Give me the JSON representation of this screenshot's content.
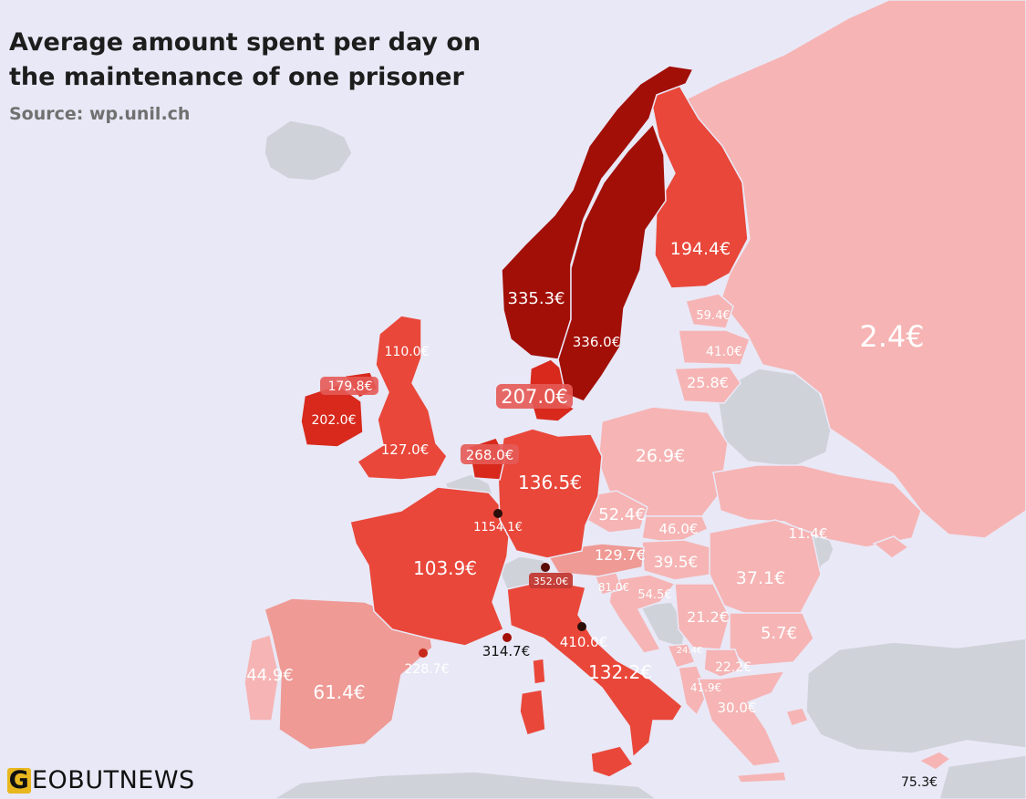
{
  "title": "Average amount spent per day on the maintenance of one prisoner",
  "source": "Source: wp.unil.ch",
  "brand": {
    "initial": "G",
    "rest": "EOBUTNEWS"
  },
  "colors": {
    "background": "#e9e8f6",
    "no_data": "#cfd2d9",
    "tier_1": "#f6b4b4",
    "tier_2": "#ef9a95",
    "tier_3": "#e9473a",
    "tier_4": "#d8291c",
    "tier_5": "#a20f07"
  },
  "countries": {
    "norway": "335.3€",
    "sweden": "336.0€",
    "finland": "194.4€",
    "russia": "2.4€",
    "estonia": "59.4€",
    "latvia": "41.0€",
    "lithuania": "25.8€",
    "denmark": "207.0€",
    "northern_ireland": "179.8€",
    "ireland": "202.0€",
    "scotland": "110.0€",
    "england": "127.0€",
    "netherlands": "268.0€",
    "luxembourg": "1154.1€",
    "germany": "136.5€",
    "poland": "26.9€",
    "czechia": "52.4€",
    "slovakia": "46.0€",
    "austria": "129.7€",
    "hungary": "39.5€",
    "ukraine": "11.4€",
    "romania": "37.1€",
    "slovenia": "81.0€",
    "croatia": "54.5€",
    "serbia": "21.2€",
    "bulgaria": "5.7€",
    "montenegro": "24.4€",
    "north_macedonia": "22.2€",
    "albania": "41.9€",
    "greece": "30.0€",
    "liechtenstein": "352.0€",
    "san_marino": "410.0€",
    "italy": "132.2€",
    "monaco": "314.7€",
    "andorra": "228.7€",
    "france": "103.9€",
    "spain": "61.4€",
    "portugal": "44.9€",
    "cyprus": "75.3€"
  }
}
